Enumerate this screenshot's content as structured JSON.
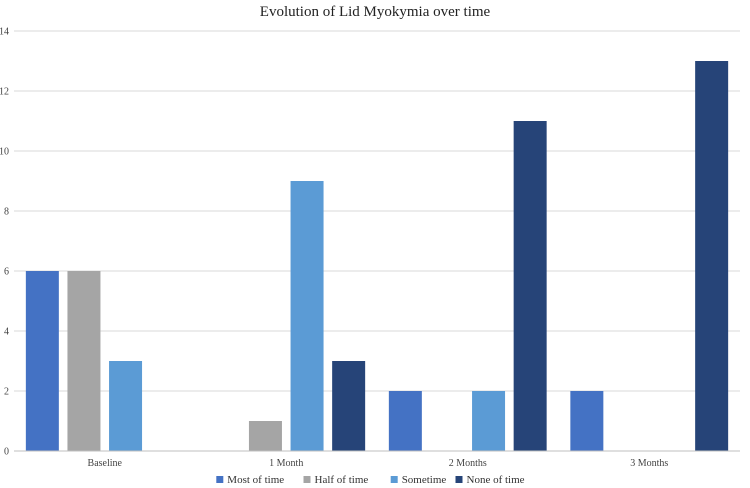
{
  "chart_data": {
    "type": "bar",
    "title": "Evolution of Lid Myokymia over time",
    "xlabel": "",
    "ylabel": "",
    "categories": [
      "Baseline",
      "1 Month",
      "2 Months",
      "3 Months"
    ],
    "series": [
      {
        "name": "Most of time",
        "color": "#4472c4",
        "values": [
          6,
          0,
          2,
          2
        ]
      },
      {
        "name": "Half of time",
        "color": "#a5a5a5",
        "values": [
          6,
          1,
          0,
          0
        ]
      },
      {
        "name": "Sometime",
        "color": "#5b9bd5",
        "values": [
          3,
          9,
          2,
          0
        ]
      },
      {
        "name": "None of time",
        "color": "#264478",
        "values": [
          0,
          3,
          11,
          13
        ]
      }
    ],
    "ylim": [
      0,
      14
    ],
    "yticks": [
      0,
      2,
      4,
      6,
      8,
      10,
      12,
      14
    ],
    "grid": true,
    "legend_position": "bottom"
  }
}
